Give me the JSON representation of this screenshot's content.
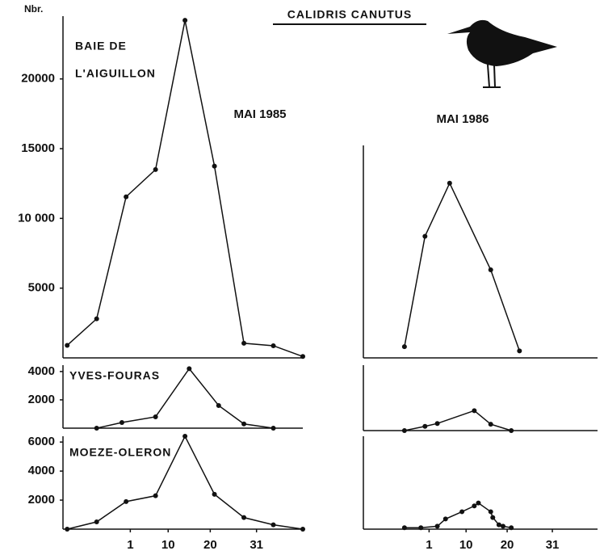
{
  "title": "CALIDRIS CANUTUS",
  "chart_data": [
    {
      "type": "line",
      "ylabel": "Nbr.",
      "subtitle": "MAI 1985",
      "labels": [
        "BAIE DE",
        "L'AIGUILLON"
      ],
      "x": [
        -14,
        -7,
        0,
        7,
        14,
        21,
        28,
        35,
        42
      ],
      "series": [
        {
          "color": "#111111",
          "values": [
            900,
            2800,
            11550,
            13500,
            24200,
            13750,
            1050,
            870,
            100
          ]
        }
      ],
      "xlim": [
        -15,
        42
      ],
      "ylim": [
        0,
        24500
      ],
      "yticks": [
        5000,
        {
          "value": 10000,
          "label": "10 000"
        },
        15000,
        20000
      ]
    },
    {
      "type": "line",
      "labels": [
        "YVES-FOURAS"
      ],
      "x": [
        -7,
        -1,
        7,
        15,
        22,
        28,
        35
      ],
      "series": [
        {
          "color": "#111111",
          "values": [
            0,
            400,
            800,
            4200,
            1600,
            300,
            0
          ]
        }
      ],
      "xlim": [
        -15,
        42
      ],
      "ylim": [
        0,
        4450
      ],
      "yticks": [
        2000,
        4000
      ]
    },
    {
      "type": "line",
      "labels": [
        "MOEZE-OLERON"
      ],
      "x": [
        -14,
        -7,
        0,
        7,
        14,
        21,
        28,
        35,
        42
      ],
      "series": [
        {
          "color": "#111111",
          "values": [
            0,
            500,
            1900,
            2300,
            6400,
            2400,
            800,
            300,
            0
          ]
        }
      ],
      "xlim": [
        -15,
        42
      ],
      "ylim": [
        0,
        6400
      ],
      "yticks": [
        2000,
        4000,
        6000
      ],
      "xticks": [
        1,
        10,
        20,
        31
      ]
    },
    {
      "type": "line",
      "subtitle": "MAI 1986",
      "x": [
        -5,
        0,
        6,
        16,
        23
      ],
      "series": [
        {
          "color": "#111111",
          "values": [
            800,
            8700,
            12500,
            6300,
            500
          ]
        }
      ],
      "xlim": [
        -15,
        42
      ],
      "ylim": [
        0,
        15200
      ]
    },
    {
      "type": "line",
      "x": [
        -5,
        0,
        3,
        12,
        16,
        21
      ],
      "series": [
        {
          "color": "#111111",
          "values": [
            0,
            300,
            500,
            1400,
            450,
            0
          ]
        }
      ],
      "xlim": [
        -15,
        42
      ],
      "ylim": [
        0,
        4600
      ]
    },
    {
      "type": "line",
      "x": [
        -5,
        -1,
        3,
        5,
        9,
        12,
        13,
        16,
        16.5,
        18,
        19,
        21
      ],
      "series": [
        {
          "color": "#111111",
          "values": [
            100,
            100,
            200,
            700,
            1200,
            1600,
            1800,
            1200,
            800,
            300,
            200,
            100
          ]
        }
      ],
      "xlim": [
        -15,
        42
      ],
      "ylim": [
        0,
        6400
      ],
      "xticks": [
        1,
        10,
        20,
        31
      ]
    }
  ]
}
